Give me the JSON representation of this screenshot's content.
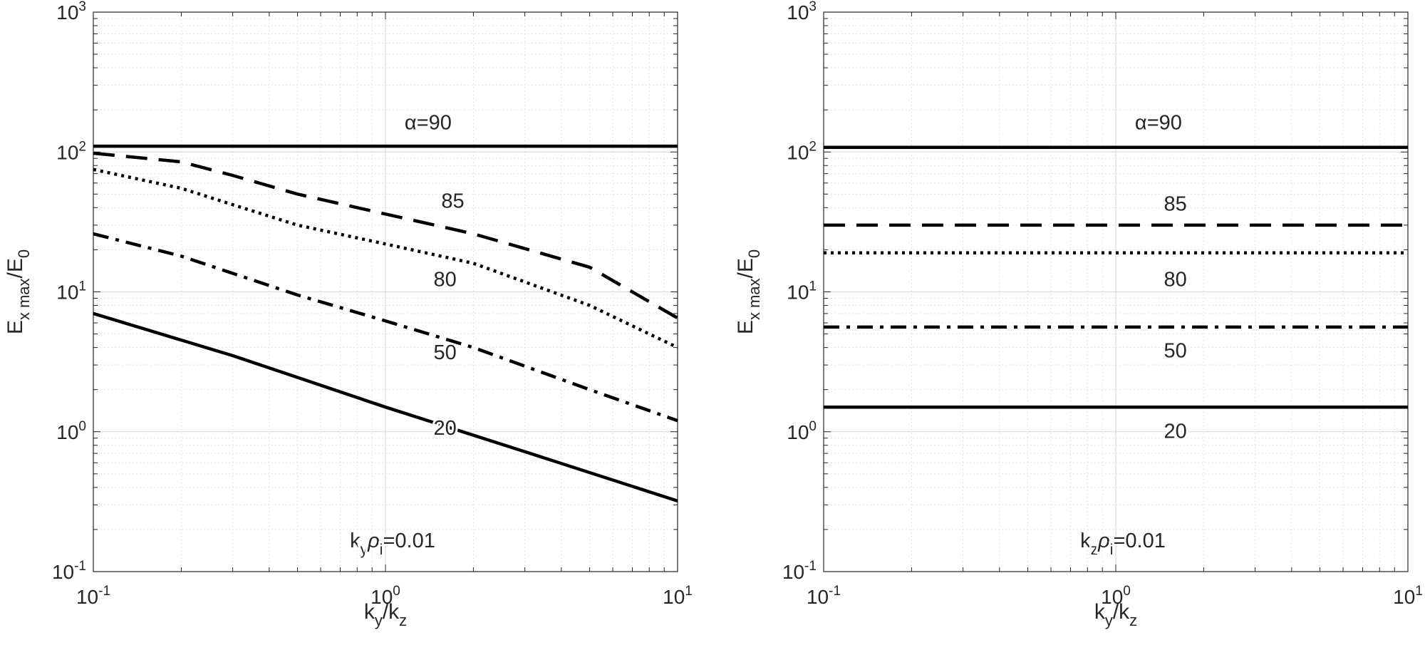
{
  "chart_data": [
    {
      "type": "line",
      "xscale": "log",
      "yscale": "log",
      "xlim": [
        0.1,
        10
      ],
      "ylim": [
        0.1,
        1000
      ],
      "grid": true,
      "x_ticks": [
        "10^-1",
        "10^0",
        "10^1"
      ],
      "y_ticks": [
        "10^-1",
        "10^0",
        "10^1",
        "10^2",
        "10^3"
      ],
      "xlabel": {
        "base": "k",
        "sub": "y",
        "mid": "/k",
        "sub2": "z"
      },
      "ylabel": {
        "base": "E",
        "sub": "x max",
        "mid": "/E",
        "sub2": "0"
      },
      "annotation": {
        "pre": "k",
        "sub": "y",
        "greek": "ρ",
        "sub2": "i",
        "post": "=0.01"
      },
      "series": [
        {
          "name": "α=90",
          "style": "solid",
          "x": [
            0.1,
            10
          ],
          "y": [
            110,
            110
          ],
          "label": {
            "text": "α=90",
            "x": 1.4,
            "y": 145
          }
        },
        {
          "name": "85",
          "style": "dashed",
          "x": [
            0.1,
            0.2,
            0.3,
            0.5,
            1,
            2,
            5,
            10
          ],
          "y": [
            98,
            85,
            68,
            50,
            36,
            26,
            15,
            6.5
          ],
          "label": {
            "text": "85",
            "x": 1.7,
            "y": 40
          }
        },
        {
          "name": "80",
          "style": "dotted",
          "x": [
            0.1,
            0.2,
            0.3,
            0.5,
            1,
            2,
            5,
            10
          ],
          "y": [
            75,
            55,
            42,
            30,
            22,
            16,
            8,
            4
          ],
          "label": {
            "text": "80",
            "x": 1.6,
            "y": 11
          }
        },
        {
          "name": "50",
          "style": "dashdot",
          "x": [
            0.1,
            0.2,
            0.5,
            1,
            2,
            5,
            10
          ],
          "y": [
            26,
            18,
            9.5,
            6.2,
            4,
            2,
            1.2
          ],
          "label": {
            "text": "50",
            "x": 1.6,
            "y": 3.3
          }
        },
        {
          "name": "20",
          "style": "solid",
          "x": [
            0.1,
            0.3,
            1,
            3,
            10
          ],
          "y": [
            7,
            3.5,
            1.5,
            0.72,
            0.32
          ],
          "label": {
            "text": "20",
            "x": 1.6,
            "y": 0.95
          }
        }
      ]
    },
    {
      "type": "line",
      "xscale": "log",
      "yscale": "log",
      "xlim": [
        0.1,
        10
      ],
      "ylim": [
        0.1,
        1000
      ],
      "grid": true,
      "x_ticks": [
        "10^-1",
        "10^0",
        "10^1"
      ],
      "y_ticks": [
        "10^-1",
        "10^0",
        "10^1",
        "10^2",
        "10^3"
      ],
      "xlabel": {
        "base": "k",
        "sub": "y",
        "mid": "/k",
        "sub2": "z"
      },
      "ylabel": {
        "base": "E",
        "sub": "x max",
        "mid": "/E",
        "sub2": "0"
      },
      "annotation": {
        "pre": "k",
        "sub": "z",
        "greek": "ρ",
        "sub2": "i",
        "post": "=0.01"
      },
      "series": [
        {
          "name": "α=90",
          "style": "solid",
          "x": [
            0.1,
            10
          ],
          "y": [
            108,
            108
          ],
          "label": {
            "text": "α=90",
            "x": 1.4,
            "y": 145
          }
        },
        {
          "name": "85",
          "style": "dashed",
          "x": [
            0.1,
            10
          ],
          "y": [
            30,
            30
          ],
          "label": {
            "text": "85",
            "x": 1.6,
            "y": 38
          }
        },
        {
          "name": "80",
          "style": "dotted",
          "x": [
            0.1,
            10
          ],
          "y": [
            19,
            19
          ],
          "label": {
            "text": "80",
            "x": 1.6,
            "y": 11
          }
        },
        {
          "name": "50",
          "style": "dashdot",
          "x": [
            0.1,
            10
          ],
          "y": [
            5.6,
            5.6
          ],
          "label": {
            "text": "50",
            "x": 1.6,
            "y": 3.4
          }
        },
        {
          "name": "20",
          "style": "solid",
          "x": [
            0.1,
            10
          ],
          "y": [
            1.5,
            1.5
          ],
          "label": {
            "text": "20",
            "x": 1.6,
            "y": 0.9
          }
        }
      ]
    }
  ]
}
